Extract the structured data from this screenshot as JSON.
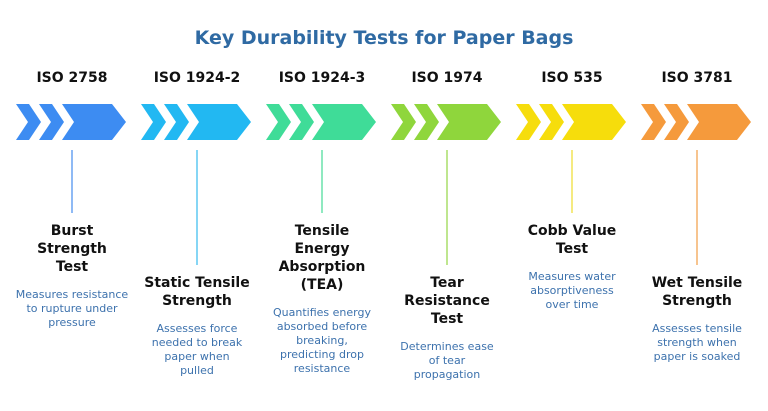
{
  "title": "Key Durability Tests for Paper Bags",
  "tests": [
    {
      "standard": "ISO 2758",
      "name": [
        "Burst",
        "Strength",
        "Test"
      ],
      "description": [
        "Measures resistance",
        "to rupture under",
        "pressure"
      ]
    },
    {
      "standard": "ISO 1924-2",
      "name": [
        "Static Tensile",
        "Strength"
      ],
      "description": [
        "Assesses force",
        "needed to break",
        "paper when",
        "pulled"
      ]
    },
    {
      "standard": "ISO 1924-3",
      "name": [
        "Tensile",
        "Energy",
        "Absorption",
        "(TEA)"
      ],
      "description": [
        "Quantifies energy",
        "absorbed before",
        "breaking,",
        "predicting drop",
        "resistance"
      ]
    },
    {
      "standard": "ISO 1974",
      "name": [
        "Tear",
        "Resistance",
        "Test"
      ],
      "description": [
        "Determines ease",
        "of tear",
        "propagation"
      ]
    },
    {
      "standard": "ISO 535",
      "name": [
        "Cobb Value",
        "Test"
      ],
      "description": [
        "Measures water",
        "absorptiveness",
        "over time"
      ]
    },
    {
      "standard": "ISO 3781",
      "name": [
        "Wet Tensile",
        "Strength"
      ],
      "description": [
        "Assesses tensile",
        "strength when",
        "paper is soaked"
      ]
    }
  ]
}
